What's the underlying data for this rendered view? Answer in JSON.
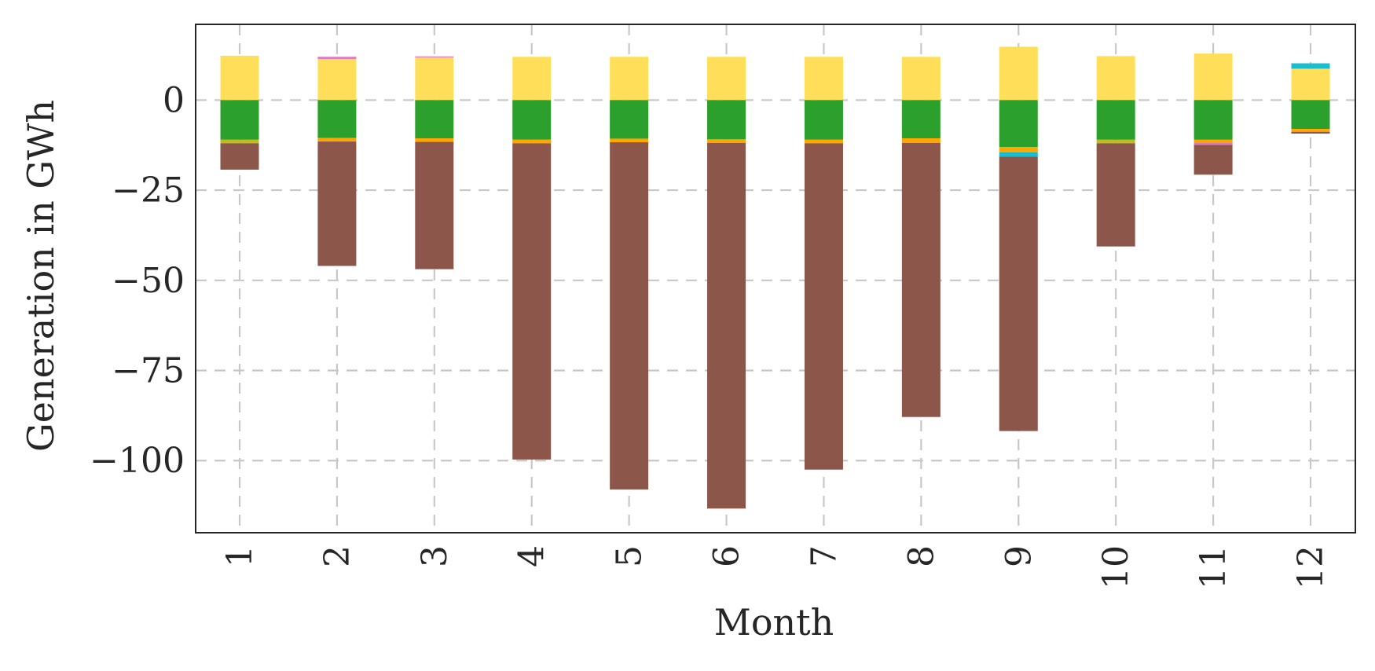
{
  "chart_data": {
    "type": "bar",
    "stacked": true,
    "title": "",
    "xlabel": "Month",
    "ylabel": "Generation in GWh",
    "categories": [
      "1",
      "2",
      "3",
      "4",
      "5",
      "6",
      "7",
      "8",
      "9",
      "10",
      "11",
      "12"
    ],
    "ylim": [
      -120,
      21
    ],
    "yticks": [
      0,
      -25,
      -50,
      -75,
      -100
    ],
    "ytick_labels": [
      "0",
      "−25",
      "−50",
      "−75",
      "−100"
    ],
    "grid": true,
    "legend": "none",
    "series": [
      {
        "color": "#ffde59",
        "values": [
          12.3,
          11.4,
          11.8,
          12.0,
          12.0,
          12.0,
          12.0,
          12.0,
          14.8,
          12.2,
          12.9,
          8.7
        ]
      },
      {
        "color": "#e377c2",
        "values": [
          0.0,
          0.6,
          0.3,
          0.0,
          0.0,
          0.0,
          0.0,
          0.0,
          0.0,
          0.0,
          0.0,
          0.0
        ]
      },
      {
        "color": "#17becf",
        "values": [
          0.0,
          0.0,
          0.0,
          0.0,
          0.0,
          0.0,
          0.0,
          0.0,
          0.0,
          0.0,
          0.0,
          1.5
        ]
      },
      {
        "color": "#2ca02c",
        "values": [
          -11.0,
          -10.5,
          -10.6,
          -11.0,
          -10.7,
          -10.9,
          -11.0,
          -10.6,
          -13.0,
          -11.0,
          -11.0,
          -8.0
        ]
      },
      {
        "color": "#bcbd22",
        "values": [
          -1.0,
          0.0,
          0.0,
          0.0,
          0.0,
          0.0,
          0.0,
          0.0,
          0.0,
          -1.0,
          0.0,
          0.0
        ]
      },
      {
        "color": "#ffa600",
        "values": [
          0.0,
          -1.0,
          -1.0,
          -1.0,
          -1.0,
          -1.0,
          -1.0,
          -1.3,
          -1.5,
          0.0,
          -0.8,
          -0.8
        ]
      },
      {
        "color": "#e377c2",
        "values": [
          0.0,
          0.0,
          0.0,
          0.0,
          0.0,
          0.0,
          0.0,
          0.0,
          0.0,
          0.0,
          -0.6,
          0.0
        ]
      },
      {
        "color": "#17becf",
        "values": [
          0.0,
          0.0,
          0.0,
          0.0,
          0.0,
          0.0,
          0.0,
          0.0,
          -1.2,
          0.0,
          0.0,
          0.0
        ]
      },
      {
        "color": "#8c564b",
        "values": [
          -7.3,
          -34.5,
          -35.3,
          -87.7,
          -96.3,
          -101.4,
          -90.5,
          -76.0,
          -76.1,
          -28.6,
          -8.3,
          -0.5
        ]
      }
    ]
  }
}
